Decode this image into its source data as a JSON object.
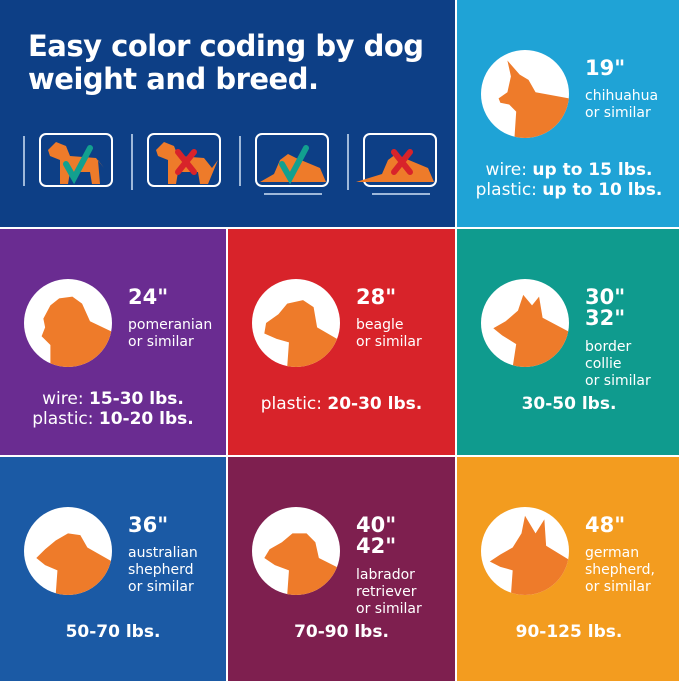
{
  "headline": "Easy color coding by dog weight and breed.",
  "colors": {
    "navy": "#0d3f86",
    "cyan": "#1fa3d6",
    "purple": "#6a2c91",
    "red": "#d8232a",
    "teal": "#0f9b8e",
    "blue": "#1b5aa5",
    "maroon": "#7e1f4f",
    "orange": "#f39c1f",
    "dog": "#ee7b2a",
    "check": "#12a08f",
    "cross": "#d8232a"
  },
  "fit_examples": [
    {
      "pose": "standing",
      "fits": true,
      "icon": "check-icon"
    },
    {
      "pose": "standing",
      "fits": false,
      "icon": "x-icon"
    },
    {
      "pose": "lying",
      "fits": true,
      "icon": "check-icon"
    },
    {
      "pose": "lying",
      "fits": false,
      "icon": "x-icon"
    }
  ],
  "tiles": [
    {
      "size": "19\"",
      "size2": "",
      "breed1": "chihuahua",
      "breed2": "or similar",
      "breed3": "",
      "lines": [
        {
          "label": "wire: ",
          "value": "up to 15 lbs."
        },
        {
          "label": "plastic: ",
          "value": "up to 10 lbs."
        }
      ]
    },
    {
      "size": "24\"",
      "size2": "",
      "breed1": "pomeranian",
      "breed2": "or similar",
      "breed3": "",
      "lines": [
        {
          "label": "wire: ",
          "value": "15-30 lbs."
        },
        {
          "label": "plastic: ",
          "value": "10-20 lbs."
        }
      ]
    },
    {
      "size": "28\"",
      "size2": "",
      "breed1": "beagle",
      "breed2": "or similar",
      "breed3": "",
      "lines": [
        {
          "label": "plastic: ",
          "value": "20-30 lbs."
        }
      ]
    },
    {
      "size": "30\"",
      "size2": "32\"",
      "breed1": "border",
      "breed2": "collie",
      "breed3": "or similar",
      "lines": [
        {
          "label": "",
          "value": "30-50 lbs."
        }
      ]
    },
    {
      "size": "36\"",
      "size2": "",
      "breed1": "australian",
      "breed2": "shepherd",
      "breed3": "or similar",
      "lines": [
        {
          "label": "",
          "value": "50-70 lbs."
        }
      ]
    },
    {
      "size": "40\"",
      "size2": "42\"",
      "breed1": "labrador",
      "breed2": "retriever",
      "breed3": "or similar",
      "lines": [
        {
          "label": "",
          "value": "70-90 lbs."
        }
      ]
    },
    {
      "size": "48\"",
      "size2": "",
      "breed1": "german",
      "breed2": "shepherd,",
      "breed3": "or similar",
      "lines": [
        {
          "label": "",
          "value": "90-125 lbs."
        }
      ]
    }
  ]
}
